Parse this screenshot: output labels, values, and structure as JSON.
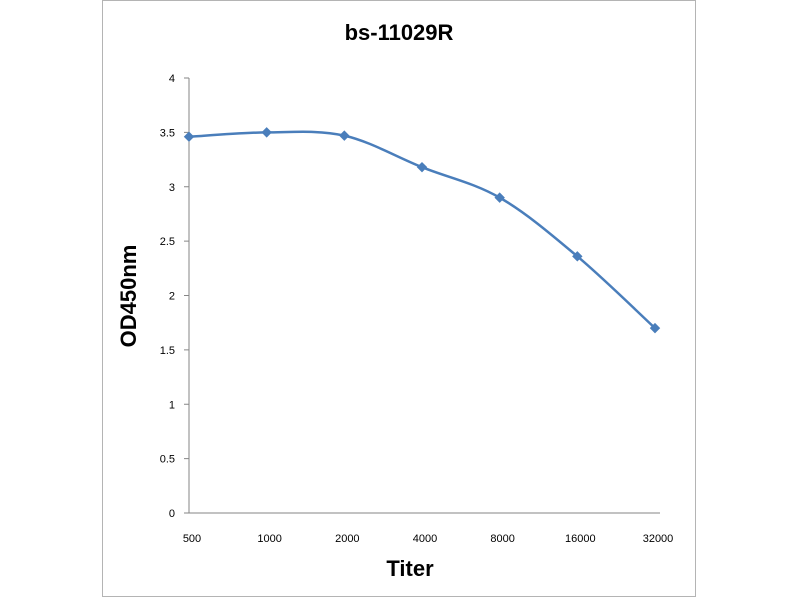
{
  "chart_data": {
    "type": "line",
    "title": "bs-11029R",
    "xlabel": "Titer",
    "ylabel": "OD450nm",
    "categories": [
      "500",
      "1000",
      "2000",
      "4000",
      "8000",
      "16000",
      "32000"
    ],
    "series": [
      {
        "values": [
          3.46,
          3.5,
          3.47,
          3.18,
          2.9,
          2.36,
          1.7
        ]
      }
    ],
    "ylim": [
      0,
      4
    ],
    "yticks": [
      "0",
      "0.5",
      "1",
      "1.5",
      "2",
      "2.5",
      "3",
      "3.5",
      "4"
    ],
    "grid": false,
    "legend": "none",
    "smooth": true,
    "marker": "diamond",
    "series_color": "#4a7ebb"
  }
}
